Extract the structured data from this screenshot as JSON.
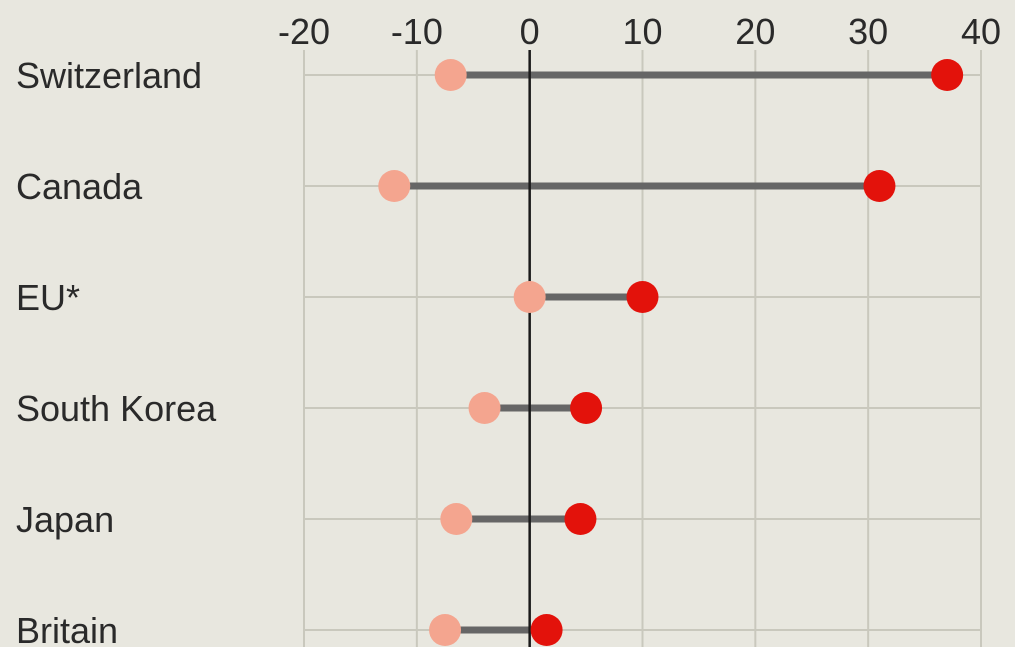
{
  "chart_data": {
    "type": "dumbbell",
    "categories": [
      "Switzerland",
      "Canada",
      "EU*",
      "South Korea",
      "Japan",
      "Britain"
    ],
    "series": [
      {
        "values": [
          -7,
          -12,
          0,
          -4,
          -6.5,
          -7.5
        ]
      },
      {
        "values": [
          37,
          31,
          10,
          5,
          4.5,
          1.5
        ]
      }
    ],
    "xticks": [
      -20,
      -10,
      0,
      10,
      20,
      30,
      40
    ],
    "xtick_labels": [
      "-20",
      "-10",
      "0",
      "10",
      "20",
      "30",
      "40"
    ],
    "xlim": [
      -20,
      40
    ],
    "grid": true,
    "colors": {
      "background": "#e8e7df",
      "grid": "#c9c8bd",
      "connector": "#666666",
      "zero_line": "#1a1a1a",
      "series_1": "#f4a58f",
      "series_2": "#e3120b"
    }
  }
}
